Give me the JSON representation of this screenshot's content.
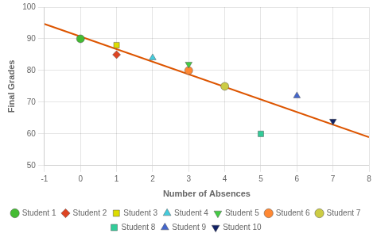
{
  "chart_data": {
    "type": "scatter",
    "xlabel": "Number of Absences",
    "ylabel": "Final Grades",
    "xlim": [
      -1,
      8
    ],
    "ylim": [
      50,
      100
    ],
    "xticks": [
      -1,
      0,
      1,
      2,
      3,
      4,
      5,
      6,
      7,
      8
    ],
    "yticks": [
      50,
      60,
      70,
      80,
      90,
      100
    ],
    "grid": true,
    "legend": "bottom",
    "series": [
      {
        "type": "line",
        "color": "#dd5500",
        "x": [
          -1,
          8
        ],
        "values": [
          94.67647058823529,
          58.94117647058823
        ]
      },
      {
        "name": "Student 1",
        "color": "#44bb33",
        "marker": "circle",
        "x": [
          0
        ],
        "values": [
          90
        ]
      },
      {
        "name": "Student 2",
        "color": "#dd4422",
        "marker": "diamond",
        "x": [
          1
        ],
        "values": [
          85
        ]
      },
      {
        "name": "Student 3",
        "color": "#dddd00",
        "marker": "square",
        "x": [
          1
        ],
        "values": [
          88
        ]
      },
      {
        "name": "Student 4",
        "color": "#44ccdd",
        "marker": "triangle-up",
        "x": [
          2
        ],
        "values": [
          84
        ]
      },
      {
        "name": "Student 5",
        "color": "#44cc44",
        "marker": "triangle-down",
        "x": [
          3
        ],
        "values": [
          82
        ]
      },
      {
        "name": "Student 6",
        "color": "#ff8833",
        "marker": "circle",
        "x": [
          3
        ],
        "values": [
          80
        ]
      },
      {
        "name": "Student 7",
        "color": "#cccc44",
        "marker": "circle",
        "x": [
          4
        ],
        "values": [
          75
        ]
      },
      {
        "name": "Student 8",
        "color": "#33cc99",
        "marker": "square",
        "x": [
          5
        ],
        "values": [
          60
        ]
      },
      {
        "name": "Student 9",
        "color": "#4466cc",
        "marker": "triangle-up",
        "x": [
          6
        ],
        "values": [
          72
        ]
      },
      {
        "name": "Student 10",
        "color": "#112266",
        "marker": "triangle-down",
        "x": [
          7
        ],
        "values": [
          64
        ]
      }
    ]
  }
}
